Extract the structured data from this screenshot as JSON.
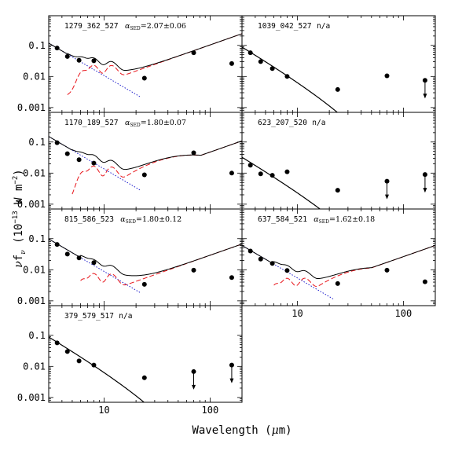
{
  "chart_data": {
    "type": "scatter",
    "xlabel": "Wavelength (μm)",
    "xlabel_parts": {
      "text": "Wavelength (",
      "mu": "μ",
      "unit": "m)"
    },
    "ylabel_parts": {
      "nu": "ν",
      "f": "f",
      "sub": "ν",
      "paren": "(10",
      "exp": "−13",
      "w": "W m",
      "exp2": "−2",
      "close": ")"
    },
    "x_scale": "log",
    "y_scale": "log",
    "xlim": [
      3.0,
      200
    ],
    "ylim": [
      0.0007,
      0.9
    ],
    "x_ticks": [
      10,
      100
    ],
    "x_tick_labels": [
      "10",
      "100"
    ],
    "y_ticks": [
      0.001,
      0.01,
      0.1
    ],
    "y_tick_labels": [
      "0.001",
      "0.01",
      "0.1"
    ],
    "colors": {
      "total": "#000000",
      "photosphere": "#1a1acc",
      "disk": "#e8141a",
      "points": "#000000"
    },
    "panels": [
      {
        "label": "1279_362_527",
        "alpha": "2.07±0.06",
        "row": 0,
        "col": 0,
        "points": [
          [
            3.6,
            0.082
          ],
          [
            4.5,
            0.044
          ],
          [
            5.8,
            0.033
          ],
          [
            8.0,
            0.032
          ],
          [
            24,
            0.0088
          ],
          [
            70,
            0.058
          ],
          [
            160,
            0.026
          ]
        ],
        "upper_limits": [],
        "photosphere": true,
        "photo_anchor": 0.082,
        "disk": {
          "peak_lambda": 100,
          "peak_value": 0.048,
          "width": 0.43,
          "start": 4.5,
          "start_value": 0.0025,
          "pah_level": 0.011
        }
      },
      {
        "label": "1039_042_527",
        "alpha": "n/a",
        "row": 0,
        "col": 1,
        "points": [
          [
            3.6,
            0.058
          ],
          [
            4.5,
            0.03
          ],
          [
            5.8,
            0.018
          ],
          [
            8.0,
            0.01
          ],
          [
            24,
            0.0038
          ],
          [
            70,
            0.0105
          ]
        ],
        "upper_limits": [
          [
            160,
            0.0075
          ]
        ],
        "photosphere": false,
        "photo_anchor": 0.06,
        "disk": null
      },
      {
        "label": "1170_189_527",
        "alpha": "1.80±0.07",
        "row": 1,
        "col": 0,
        "points": [
          [
            3.6,
            0.095
          ],
          [
            4.5,
            0.042
          ],
          [
            5.8,
            0.027
          ],
          [
            8.0,
            0.021
          ],
          [
            24,
            0.0088
          ],
          [
            70,
            0.045
          ],
          [
            160,
            0.01
          ]
        ],
        "upper_limits": [],
        "photosphere": true,
        "photo_anchor": 0.105,
        "disk": {
          "peak_lambda": 70,
          "peak_value": 0.038,
          "width": 0.36,
          "start": 5.0,
          "start_value": 0.0013,
          "pah_level": 0.009
        }
      },
      {
        "label": "623_207_520",
        "alpha": "n/a",
        "row": 1,
        "col": 1,
        "points": [
          [
            3.6,
            0.018
          ],
          [
            4.5,
            0.0095
          ],
          [
            5.8,
            0.0085
          ],
          [
            8.0,
            0.011
          ],
          [
            24,
            0.0028
          ]
        ],
        "upper_limits": [
          [
            70,
            0.0055
          ],
          [
            160,
            0.009
          ]
        ],
        "photosphere": false,
        "photo_anchor": 0.022,
        "disk": null
      },
      {
        "label": "815_586_523",
        "alpha": "1.80±0.12",
        "row": 2,
        "col": 0,
        "points": [
          [
            3.6,
            0.065
          ],
          [
            4.5,
            0.032
          ],
          [
            5.8,
            0.024
          ],
          [
            8.0,
            0.017
          ],
          [
            24,
            0.0034
          ],
          [
            70,
            0.0097
          ],
          [
            160,
            0.0056
          ]
        ],
        "upper_limits": [],
        "photosphere": true,
        "photo_anchor": 0.068,
        "disk": {
          "peak_lambda": 70,
          "peak_value": 0.0105,
          "width": 0.33,
          "start": 6.0,
          "start_value": 0.001,
          "pah_level": 0.0038
        }
      },
      {
        "label": "637_584_521",
        "alpha": "1.62±0.18",
        "row": 2,
        "col": 1,
        "points": [
          [
            3.6,
            0.04
          ],
          [
            4.5,
            0.022
          ],
          [
            5.8,
            0.016
          ],
          [
            8.0,
            0.0095
          ],
          [
            24,
            0.0036
          ],
          [
            70,
            0.0097
          ],
          [
            160,
            0.0041
          ]
        ],
        "upper_limits": [],
        "photosphere": true,
        "photo_anchor": 0.042,
        "disk": {
          "peak_lambda": 55,
          "peak_value": 0.0115,
          "width": 0.33,
          "start": 6.0,
          "start_value": 0.0009,
          "pah_level": 0.0025
        }
      },
      {
        "label": "379_579_517",
        "alpha": "n/a",
        "row": 3,
        "col": 0,
        "points": [
          [
            3.6,
            0.057
          ],
          [
            4.5,
            0.03
          ],
          [
            5.8,
            0.015
          ],
          [
            8.0,
            0.011
          ],
          [
            24,
            0.0043
          ]
        ],
        "upper_limits": [
          [
            70,
            0.0068
          ],
          [
            160,
            0.011
          ]
        ],
        "photosphere": false,
        "photo_anchor": 0.06,
        "disk": null
      }
    ]
  }
}
